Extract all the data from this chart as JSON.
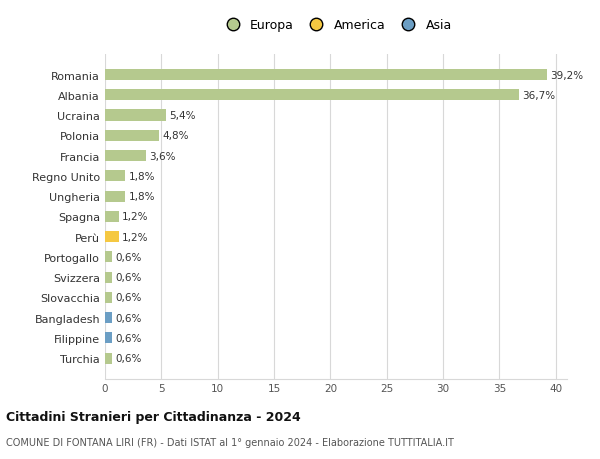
{
  "countries": [
    "Romania",
    "Albania",
    "Ucraina",
    "Polonia",
    "Francia",
    "Regno Unito",
    "Ungheria",
    "Spagna",
    "Perù",
    "Portogallo",
    "Svizzera",
    "Slovacchia",
    "Bangladesh",
    "Filippine",
    "Turchia"
  ],
  "values": [
    39.2,
    36.7,
    5.4,
    4.8,
    3.6,
    1.8,
    1.8,
    1.2,
    1.2,
    0.6,
    0.6,
    0.6,
    0.6,
    0.6,
    0.6
  ],
  "labels": [
    "39,2%",
    "36,7%",
    "5,4%",
    "4,8%",
    "3,6%",
    "1,8%",
    "1,8%",
    "1,2%",
    "1,2%",
    "0,6%",
    "0,6%",
    "0,6%",
    "0,6%",
    "0,6%",
    "0,6%"
  ],
  "continents": [
    "Europa",
    "Europa",
    "Europa",
    "Europa",
    "Europa",
    "Europa",
    "Europa",
    "Europa",
    "America",
    "Europa",
    "Europa",
    "Europa",
    "Asia",
    "Asia",
    "Europa"
  ],
  "colors": {
    "Europa": "#b5c98e",
    "America": "#f5c842",
    "Asia": "#6b9ec4"
  },
  "xlim": [
    0,
    41
  ],
  "xticks": [
    0,
    5,
    10,
    15,
    20,
    25,
    30,
    35,
    40
  ],
  "title": "Cittadini Stranieri per Cittadinanza - 2024",
  "subtitle": "COMUNE DI FONTANA LIRI (FR) - Dati ISTAT al 1° gennaio 2024 - Elaborazione TUTTITALIA.IT",
  "bg_color": "#ffffff",
  "grid_color": "#d8d8d8",
  "bar_height": 0.55
}
